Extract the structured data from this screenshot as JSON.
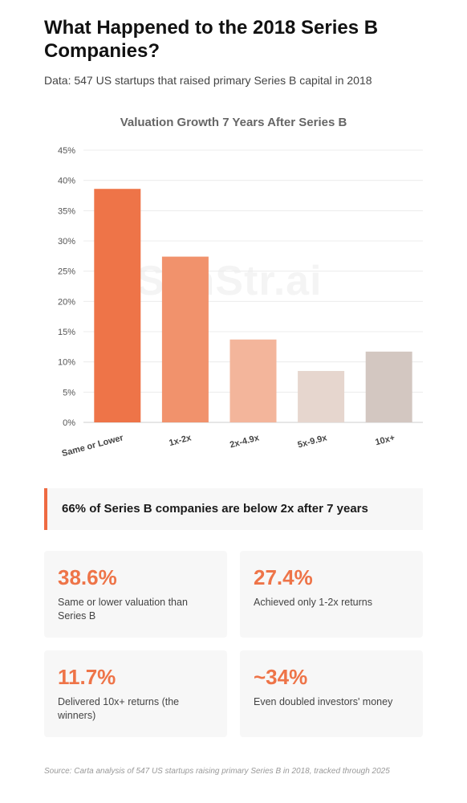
{
  "header": {
    "title": "What Happened to the 2018 Series B Companies?",
    "subtitle": "Data: 547 US startups that raised primary Series B capital in 2018"
  },
  "watermark": "SanStr.ai",
  "chart_data": {
    "type": "bar",
    "title": "Valuation Growth 7 Years After Series B",
    "xlabel": "",
    "ylabel": "",
    "categories": [
      "Same or Lower",
      "1x-2x",
      "2x-4.9x",
      "5x-9.9x",
      "10x+"
    ],
    "values": [
      38.6,
      27.4,
      13.7,
      8.5,
      11.7
    ],
    "colors": [
      "#ee7448",
      "#f1926c",
      "#f3b59b",
      "#e6d6ce",
      "#d3c7c1"
    ],
    "ylim": [
      0,
      45
    ],
    "yticks": [
      0,
      5,
      10,
      15,
      20,
      25,
      30,
      35,
      40,
      45
    ],
    "ytick_suffix": "%",
    "grid": true,
    "legend": "none"
  },
  "callout": {
    "text": "66% of Series B companies are below 2x after 7 years",
    "accent": "#ee6a42"
  },
  "stats": [
    {
      "value": "38.6%",
      "label": "Same or lower valuation than Series B"
    },
    {
      "value": "27.4%",
      "label": "Achieved only 1-2x returns"
    },
    {
      "value": "11.7%",
      "label": "Delivered 10x+ returns (the winners)"
    },
    {
      "value": "~34%",
      "label": "Even doubled investors' money"
    }
  ],
  "footer": {
    "source": "Source: Carta analysis of 547 US startups raising primary Series B in 2018, tracked through 2025"
  }
}
